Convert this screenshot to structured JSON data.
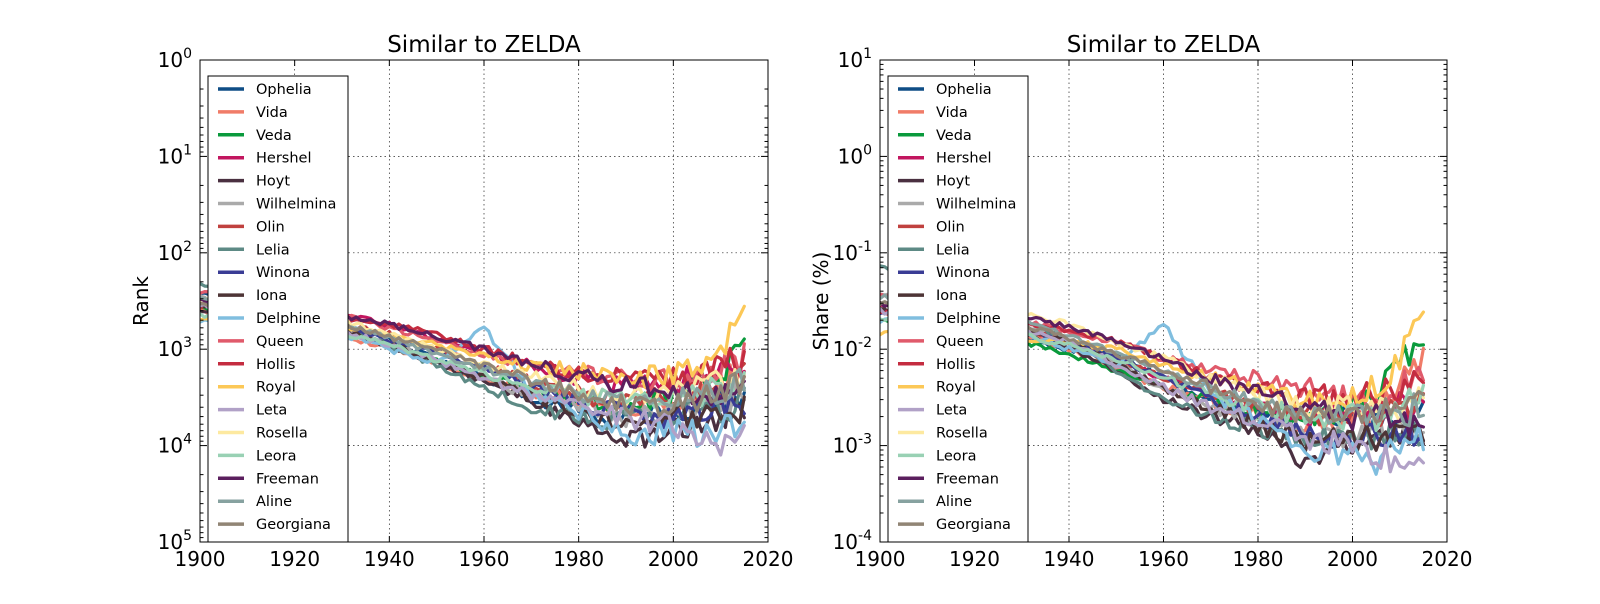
{
  "chart_data": [
    {
      "type": "line",
      "title": "Similar to ZELDA",
      "xlabel": "",
      "ylabel": "Rank",
      "xlim": [
        1900,
        2020
      ],
      "x_ticks": [
        "1900",
        "1920",
        "1940",
        "1960",
        "1980",
        "2000",
        "2020"
      ],
      "y_scale": "log",
      "y_inverted": true,
      "ylim": [
        1,
        100000
      ],
      "y_ticks": [
        {
          "base": "10",
          "exp": "0"
        },
        {
          "base": "10",
          "exp": "1"
        },
        {
          "base": "10",
          "exp": "2"
        },
        {
          "base": "10",
          "exp": "3"
        },
        {
          "base": "10",
          "exp": "4"
        },
        {
          "base": "10",
          "exp": "5"
        }
      ],
      "grid": true,
      "legend_position": "upper-left",
      "years": [
        1900,
        1910,
        1920,
        1930,
        1940,
        1950,
        1960,
        1970,
        1980,
        1990,
        2000,
        2005,
        2010,
        2015
      ],
      "series": [
        {
          "name": "Ophelia",
          "color": "#0f4d85",
          "values": [
            250,
            350,
            450,
            550,
            800,
            1300,
            2000,
            3200,
            4500,
            5000,
            4500,
            4000,
            3500,
            2500
          ]
        },
        {
          "name": "Vida",
          "color": "#f07c68",
          "values": [
            400,
            500,
            600,
            750,
            1000,
            1400,
            2000,
            2800,
            3500,
            4000,
            3500,
            3000,
            2500,
            1500
          ]
        },
        {
          "name": "Veda",
          "color": "#0a9a3c",
          "values": [
            350,
            450,
            600,
            700,
            900,
            1300,
            2000,
            2500,
            3500,
            4000,
            3000,
            2500,
            1800,
            900
          ]
        },
        {
          "name": "Hershel",
          "color": "#c2165f",
          "values": [
            300,
            350,
            400,
            450,
            550,
            800,
            1100,
            1500,
            2000,
            2500,
            2200,
            2000,
            1800,
            1500
          ]
        },
        {
          "name": "Hoyt",
          "color": "#4a3040",
          "values": [
            400,
            450,
            500,
            650,
            900,
            1400,
            2200,
            3500,
            6000,
            9000,
            7000,
            6000,
            5000,
            4000
          ]
        },
        {
          "name": "Wilhelmina",
          "color": "#aaaaaa",
          "values": [
            300,
            380,
            450,
            600,
            850,
            1300,
            2000,
            3000,
            4000,
            5000,
            4500,
            4000,
            3500,
            3000
          ]
        },
        {
          "name": "Olin",
          "color": "#c0413f",
          "values": [
            350,
            400,
            450,
            550,
            700,
            1000,
            1500,
            2200,
            3000,
            3500,
            3000,
            2800,
            2500,
            2000
          ]
        },
        {
          "name": "Lelia",
          "color": "#5d8a85",
          "values": [
            200,
            300,
            450,
            600,
            900,
            1500,
            2500,
            4000,
            5000,
            5500,
            5000,
            4500,
            4000,
            3500
          ]
        },
        {
          "name": "Winona",
          "color": "#3a3c95",
          "values": [
            350,
            400,
            500,
            600,
            800,
            1100,
            1600,
            2500,
            3500,
            4500,
            5000,
            4500,
            4000,
            3500
          ]
        },
        {
          "name": "Iona",
          "color": "#4d3436",
          "values": [
            350,
            420,
            500,
            650,
            900,
            1300,
            2000,
            3000,
            4500,
            6000,
            5000,
            5000,
            4500,
            4000
          ]
        },
        {
          "name": "Delphine",
          "color": "#80bedf",
          "values": [
            500,
            550,
            600,
            700,
            1000,
            1400,
            600,
            2800,
            4500,
            8000,
            7000,
            7500,
            6500,
            5000
          ]
        },
        {
          "name": "Queen",
          "color": "#e05a6b",
          "values": [
            250,
            300,
            350,
            450,
            600,
            800,
            1100,
            1500,
            1800,
            2000,
            2200,
            2000,
            1600,
            1300
          ]
        },
        {
          "name": "Hollis",
          "color": "#c42c40",
          "values": [
            350,
            400,
            450,
            500,
            550,
            700,
            1000,
            1400,
            1800,
            2000,
            2100,
            1800,
            1600,
            1200
          ]
        },
        {
          "name": "Royal",
          "color": "#fcc857",
          "values": [
            500,
            500,
            550,
            600,
            700,
            900,
            1200,
            1500,
            1700,
            1900,
            1900,
            1600,
            1100,
            450
          ]
        },
        {
          "name": "Leta",
          "color": "#b1a1c7",
          "values": [
            350,
            400,
            500,
            650,
            900,
            1300,
            2000,
            3000,
            4000,
            5000,
            6000,
            8000,
            11000,
            9000
          ]
        },
        {
          "name": "Rosella",
          "color": "#fde9a0",
          "values": [
            300,
            350,
            400,
            500,
            700,
            1000,
            1400,
            1900,
            2500,
            3000,
            2800,
            2500,
            2300,
            2000
          ]
        },
        {
          "name": "Leora",
          "color": "#99d1b4",
          "values": [
            450,
            500,
            550,
            700,
            900,
            1300,
            1800,
            2400,
            3000,
            3500,
            3200,
            3000,
            2500,
            2000
          ]
        },
        {
          "name": "Freeman",
          "color": "#5b1f5e",
          "values": [
            300,
            350,
            400,
            450,
            550,
            750,
            1000,
            1400,
            1900,
            2400,
            2700,
            2800,
            2800,
            2600
          ]
        },
        {
          "name": "Aline",
          "color": "#87a2a0",
          "values": [
            300,
            380,
            450,
            550,
            750,
            1100,
            1600,
            2300,
            3000,
            3800,
            3500,
            3000,
            2700,
            2200
          ]
        },
        {
          "name": "Georgiana",
          "color": "#918575",
          "values": [
            350,
            400,
            450,
            550,
            750,
            1000,
            1500,
            2100,
            2800,
            3800,
            3600,
            3200,
            2800,
            2400
          ]
        }
      ]
    },
    {
      "type": "line",
      "title": "Similar to ZELDA",
      "xlabel": "",
      "ylabel": "Share (%)",
      "xlim": [
        1900,
        2020
      ],
      "x_ticks": [
        "1900",
        "1920",
        "1940",
        "1960",
        "1980",
        "2000",
        "2020"
      ],
      "y_scale": "log",
      "y_inverted": false,
      "ylim": [
        0.0001,
        10
      ],
      "y_ticks": [
        {
          "base": "10",
          "exp": "1"
        },
        {
          "base": "10",
          "exp": "0"
        },
        {
          "base": "10",
          "exp": "-1"
        },
        {
          "base": "10",
          "exp": "-2"
        },
        {
          "base": "10",
          "exp": "-3"
        },
        {
          "base": "10",
          "exp": "-4"
        }
      ],
      "grid": true,
      "legend_position": "upper-left",
      "years": [
        1900,
        1910,
        1920,
        1930,
        1940,
        1950,
        1960,
        1970,
        1980,
        1990,
        2000,
        2005,
        2010,
        2015
      ],
      "series": [
        {
          "name": "Ophelia",
          "color": "#0f4d85",
          "values": [
            0.025,
            0.02,
            0.018,
            0.013,
            0.01,
            0.009,
            0.005,
            0.003,
            0.0025,
            0.002,
            0.002,
            0.002,
            0.002,
            0.003
          ]
        },
        {
          "name": "Vida",
          "color": "#f07c68",
          "values": [
            0.03,
            0.025,
            0.02,
            0.015,
            0.01,
            0.006,
            0.004,
            0.003,
            0.002,
            0.0015,
            0.002,
            0.002,
            0.004,
            0.008
          ]
        },
        {
          "name": "Veda",
          "color": "#0a9a3c",
          "values": [
            0.02,
            0.018,
            0.016,
            0.012,
            0.009,
            0.006,
            0.004,
            0.003,
            0.0022,
            0.002,
            0.0025,
            0.003,
            0.007,
            0.016
          ]
        },
        {
          "name": "Hershel",
          "color": "#c2165f",
          "values": [
            0.03,
            0.025,
            0.022,
            0.018,
            0.012,
            0.008,
            0.005,
            0.0035,
            0.0025,
            0.002,
            0.002,
            0.002,
            0.0025,
            0.003
          ]
        },
        {
          "name": "Hoyt",
          "color": "#4a3040",
          "values": [
            0.025,
            0.022,
            0.02,
            0.015,
            0.01,
            0.006,
            0.003,
            0.002,
            0.0015,
            0.0007,
            0.001,
            0.0012,
            0.0013,
            0.0015
          ]
        },
        {
          "name": "Wilhelmina",
          "color": "#aaaaaa",
          "values": [
            0.04,
            0.03,
            0.025,
            0.018,
            0.012,
            0.007,
            0.004,
            0.0025,
            0.0018,
            0.0012,
            0.0012,
            0.0013,
            0.0014,
            0.0015
          ]
        },
        {
          "name": "Olin",
          "color": "#c0413f",
          "values": [
            0.025,
            0.022,
            0.02,
            0.016,
            0.012,
            0.008,
            0.005,
            0.0035,
            0.0025,
            0.002,
            0.002,
            0.002,
            0.0022,
            0.003
          ]
        },
        {
          "name": "Lelia",
          "color": "#5d8a85",
          "values": [
            0.07,
            0.045,
            0.03,
            0.02,
            0.012,
            0.006,
            0.003,
            0.002,
            0.0015,
            0.0012,
            0.0012,
            0.0013,
            0.0014,
            0.0015
          ]
        },
        {
          "name": "Winona",
          "color": "#3a3c95",
          "values": [
            0.025,
            0.022,
            0.02,
            0.016,
            0.012,
            0.008,
            0.005,
            0.003,
            0.002,
            0.0014,
            0.0012,
            0.0013,
            0.0013,
            0.0015
          ]
        },
        {
          "name": "Iona",
          "color": "#4d3436",
          "values": [
            0.025,
            0.022,
            0.02,
            0.016,
            0.012,
            0.007,
            0.004,
            0.0025,
            0.0016,
            0.0011,
            0.0012,
            0.0012,
            0.0013,
            0.0015
          ]
        },
        {
          "name": "Delphine",
          "color": "#80bedf",
          "values": [
            0.02,
            0.02,
            0.018,
            0.015,
            0.01,
            0.007,
            0.018,
            0.0035,
            0.0018,
            0.0008,
            0.0008,
            0.0007,
            0.0009,
            0.0012
          ]
        },
        {
          "name": "Queen",
          "color": "#e05a6b",
          "values": [
            0.035,
            0.03,
            0.025,
            0.02,
            0.015,
            0.012,
            0.008,
            0.006,
            0.005,
            0.004,
            0.003,
            0.0035,
            0.004,
            0.005
          ]
        },
        {
          "name": "Hollis",
          "color": "#c42c40",
          "values": [
            0.025,
            0.022,
            0.02,
            0.018,
            0.016,
            0.012,
            0.008,
            0.005,
            0.004,
            0.0035,
            0.003,
            0.0035,
            0.004,
            0.005
          ]
        },
        {
          "name": "Royal",
          "color": "#fcc857",
          "values": [
            0.015,
            0.015,
            0.014,
            0.013,
            0.012,
            0.01,
            0.007,
            0.005,
            0.004,
            0.003,
            0.003,
            0.004,
            0.008,
            0.035
          ]
        },
        {
          "name": "Leta",
          "color": "#b1a1c7",
          "values": [
            0.025,
            0.022,
            0.02,
            0.016,
            0.012,
            0.007,
            0.004,
            0.0025,
            0.0018,
            0.0012,
            0.001,
            0.0008,
            0.0006,
            0.0007
          ]
        },
        {
          "name": "Rosella",
          "color": "#fde9a0",
          "values": [
            0.03,
            0.03,
            0.028,
            0.024,
            0.018,
            0.012,
            0.008,
            0.005,
            0.0035,
            0.0025,
            0.0025,
            0.0025,
            0.0025,
            0.003
          ]
        },
        {
          "name": "Leora",
          "color": "#99d1b4",
          "values": [
            0.02,
            0.018,
            0.017,
            0.014,
            0.011,
            0.008,
            0.005,
            0.0035,
            0.0025,
            0.002,
            0.002,
            0.002,
            0.0025,
            0.003
          ]
        },
        {
          "name": "Freeman",
          "color": "#5b1f5e",
          "values": [
            0.03,
            0.028,
            0.025,
            0.022,
            0.017,
            0.012,
            0.008,
            0.005,
            0.0035,
            0.0025,
            0.002,
            0.002,
            0.0018,
            0.0018
          ]
        },
        {
          "name": "Aline",
          "color": "#87a2a0",
          "values": [
            0.035,
            0.03,
            0.025,
            0.02,
            0.014,
            0.009,
            0.006,
            0.004,
            0.0028,
            0.002,
            0.002,
            0.002,
            0.0022,
            0.0025
          ]
        },
        {
          "name": "Georgiana",
          "color": "#918575",
          "values": [
            0.03,
            0.026,
            0.022,
            0.018,
            0.013,
            0.009,
            0.006,
            0.004,
            0.0028,
            0.002,
            0.002,
            0.0022,
            0.0025,
            0.003
          ]
        }
      ]
    }
  ]
}
